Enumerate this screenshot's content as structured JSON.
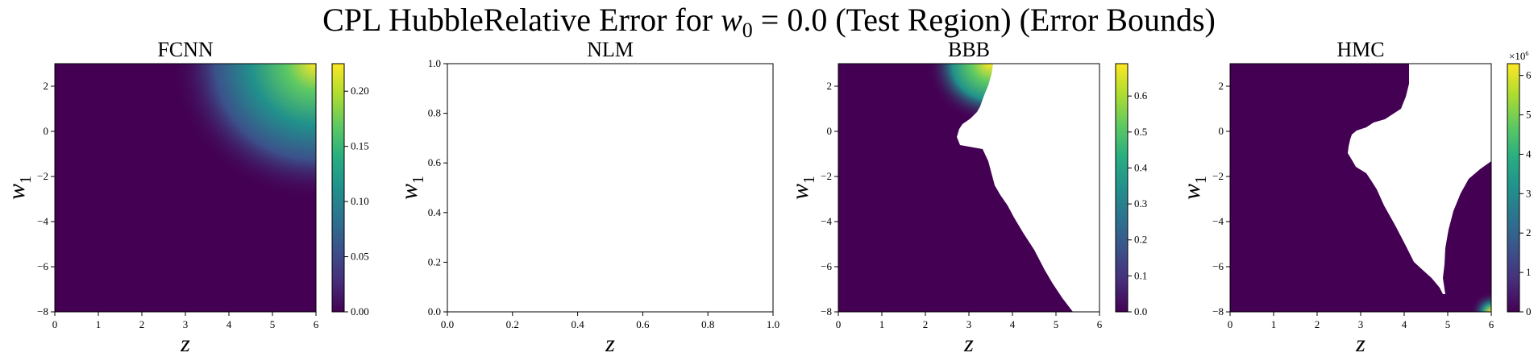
{
  "figure": {
    "title_parts": [
      "CPL HubbleRelative Error for ",
      "w",
      "0",
      " = 0.0 (Test Region) (Error Bounds)"
    ]
  },
  "colormap": "viridis",
  "chart_data": [
    {
      "type": "heatmap",
      "title": "FCNN",
      "xlabel": "z",
      "ylabel_parts": [
        "w",
        "1"
      ],
      "xlim": [
        0,
        6
      ],
      "ylim": [
        -8,
        3
      ],
      "xticks": [
        "0",
        "1",
        "2",
        "3",
        "4",
        "5",
        "6"
      ],
      "yticks": [
        "−8",
        "−6",
        "−4",
        "−2",
        "0",
        "2"
      ],
      "colorbar": {
        "min": 0,
        "max": 0.225,
        "ticks": [
          "0.00",
          "0.05",
          "0.10",
          "0.15",
          "0.20"
        ],
        "multiplier": ""
      },
      "pattern": "corner_hotspot_top_right",
      "grid": false
    },
    {
      "type": "heatmap",
      "title": "NLM",
      "xlabel": "z",
      "ylabel_parts": [
        "w",
        "1"
      ],
      "xlim": [
        0,
        1
      ],
      "ylim": [
        0,
        1
      ],
      "xticks": [
        "0.0",
        "0.2",
        "0.4",
        "0.6",
        "0.8",
        "1.0"
      ],
      "yticks": [
        "0.0",
        "0.2",
        "0.4",
        "0.6",
        "0.8",
        "1.0"
      ],
      "colorbar": null,
      "pattern": "empty",
      "grid": false
    },
    {
      "type": "heatmap",
      "title": "BBB",
      "xlabel": "z",
      "ylabel_parts": [
        "w",
        "1"
      ],
      "xlim": [
        0,
        6
      ],
      "ylim": [
        -8,
        3
      ],
      "xticks": [
        "0",
        "1",
        "2",
        "3",
        "4",
        "5",
        "6"
      ],
      "yticks": [
        "−8",
        "−6",
        "−4",
        "−2",
        "0",
        "2"
      ],
      "colorbar": {
        "min": 0,
        "max": 0.69,
        "ticks": [
          "0.0",
          "0.1",
          "0.2",
          "0.3",
          "0.4",
          "0.5",
          "0.6"
        ],
        "multiplier": ""
      },
      "pattern": "masked_region_right",
      "grid": false
    },
    {
      "type": "heatmap",
      "title": "HMC",
      "xlabel": "z",
      "ylabel_parts": [
        "w",
        "1"
      ],
      "xlim": [
        0,
        6
      ],
      "ylim": [
        -8,
        3
      ],
      "xticks": [
        "0",
        "1",
        "2",
        "3",
        "4",
        "5",
        "6"
      ],
      "yticks": [
        "−8",
        "−6",
        "−4",
        "−2",
        "0",
        "2"
      ],
      "colorbar": {
        "min": 0,
        "max": 6.3,
        "ticks": [
          "0",
          "1",
          "2",
          "3",
          "4",
          "5",
          "6"
        ],
        "multiplier_parts": [
          "×10",
          "6"
        ]
      },
      "pattern": "masked_region_center",
      "grid": false
    }
  ]
}
